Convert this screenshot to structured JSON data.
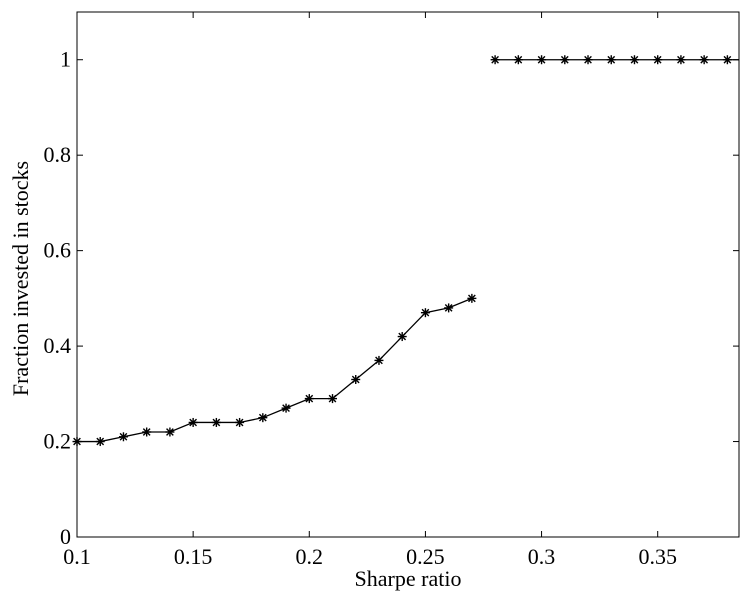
{
  "chart_data": {
    "type": "line",
    "title": "",
    "xlabel": "Sharpe ratio",
    "ylabel": "Fraction invested in stocks",
    "xlim": [
      0.1,
      0.385
    ],
    "ylim": [
      0,
      1.1
    ],
    "xticks": [
      0.1,
      0.15,
      0.2,
      0.25,
      0.3,
      0.35
    ],
    "xtick_labels": [
      "0.1",
      "0.15",
      "0.2",
      "0.25",
      "0.3",
      "0.35"
    ],
    "yticks": [
      0,
      0.2,
      0.4,
      0.6,
      0.8,
      1
    ],
    "ytick_labels": [
      "0",
      "0.2",
      "0.4",
      "0.6",
      "0.8",
      "1"
    ],
    "grid": false,
    "legend": "none",
    "line_color": "#000000",
    "marker": "asterisk",
    "series": [
      {
        "x": [
          0.1,
          0.11,
          0.12,
          0.13,
          0.14,
          0.15,
          0.16,
          0.17,
          0.18,
          0.19,
          0.2,
          0.21,
          0.22,
          0.23,
          0.24,
          0.25,
          0.26,
          0.27
        ],
        "values": [
          0.2,
          0.2,
          0.21,
          0.22,
          0.22,
          0.24,
          0.24,
          0.24,
          0.25,
          0.27,
          0.29,
          0.29,
          0.33,
          0.37,
          0.42,
          0.47,
          0.48,
          0.5
        ]
      },
      {
        "x": [
          0.28,
          0.29,
          0.3,
          0.31,
          0.32,
          0.33,
          0.34,
          0.35,
          0.36,
          0.37,
          0.38,
          0.385
        ],
        "values": [
          1,
          1,
          1,
          1,
          1,
          1,
          1,
          1,
          1,
          1,
          1,
          1
        ],
        "marker_count": 11
      }
    ]
  }
}
